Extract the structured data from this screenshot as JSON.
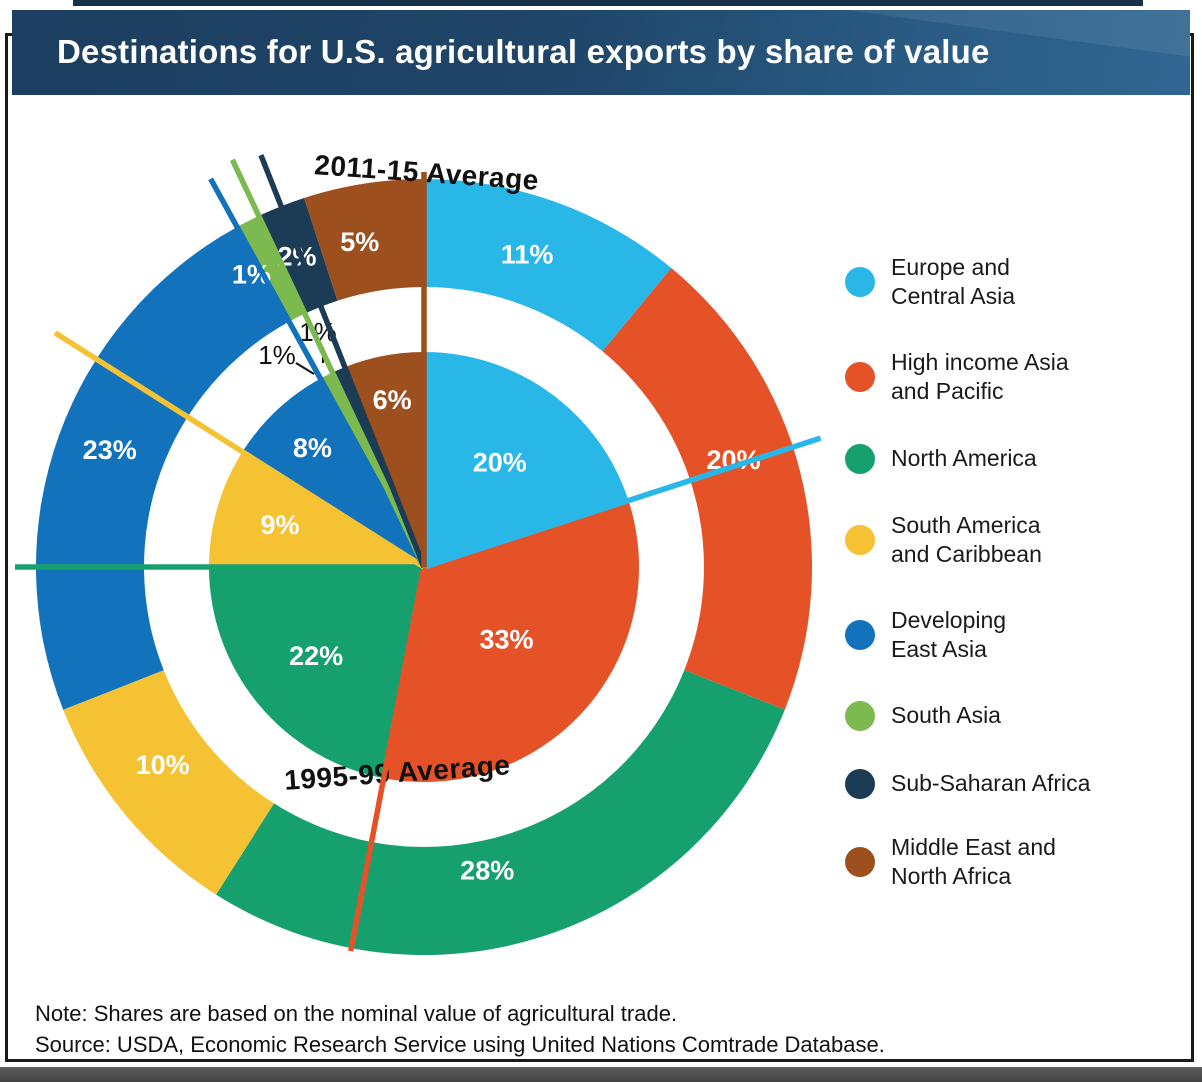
{
  "header": {
    "title": "Destinations for U.S. agricultural exports by share of value"
  },
  "chart_data": {
    "type": "pie",
    "subtype": "nested-donut",
    "title": "Destinations for U.S. agricultural exports by share of value",
    "units": "%",
    "categories": [
      "Europe and Central Asia",
      "High income Asia and Pacific",
      "North America",
      "South America and Caribbean",
      "Developing East Asia",
      "South Asia",
      "Sub-Saharan Africa",
      "Middle East and North Africa"
    ],
    "colors": [
      "#29b7e8",
      "#e65227",
      "#16a06e",
      "#f5c233",
      "#1273bc",
      "#7cb94f",
      "#1c3b55",
      "#9e4f1e"
    ],
    "series": [
      {
        "name": "1995-99 Average",
        "ring": "inner",
        "values": [
          20,
          33,
          22,
          9,
          8,
          1,
          1,
          6
        ]
      },
      {
        "name": "2011-15 Average",
        "ring": "outer",
        "values": [
          11,
          20,
          28,
          10,
          23,
          1,
          2,
          5
        ]
      }
    ],
    "legend_position": "right"
  },
  "legend": {
    "items": [
      {
        "label": "Europe and\nCentral Asia",
        "color": "#29b7e8"
      },
      {
        "label": "High income Asia\nand Pacific",
        "color": "#e65227"
      },
      {
        "label": "North America",
        "color": "#16a06e"
      },
      {
        "label": "South America\nand Caribbean",
        "color": "#f5c233"
      },
      {
        "label": "Developing\nEast Asia",
        "color": "#1273bc"
      },
      {
        "label": "South Asia",
        "color": "#7cb94f"
      },
      {
        "label": "Sub-Saharan Africa",
        "color": "#1c3b55"
      },
      {
        "label": "Middle East and\nNorth Africa",
        "color": "#9e4f1e"
      }
    ]
  },
  "footer": {
    "note": "Note: Shares are based on the nominal value of agricultural trade.",
    "source": "Source: USDA, Economic Research Service using United Nations Comtrade Database."
  }
}
